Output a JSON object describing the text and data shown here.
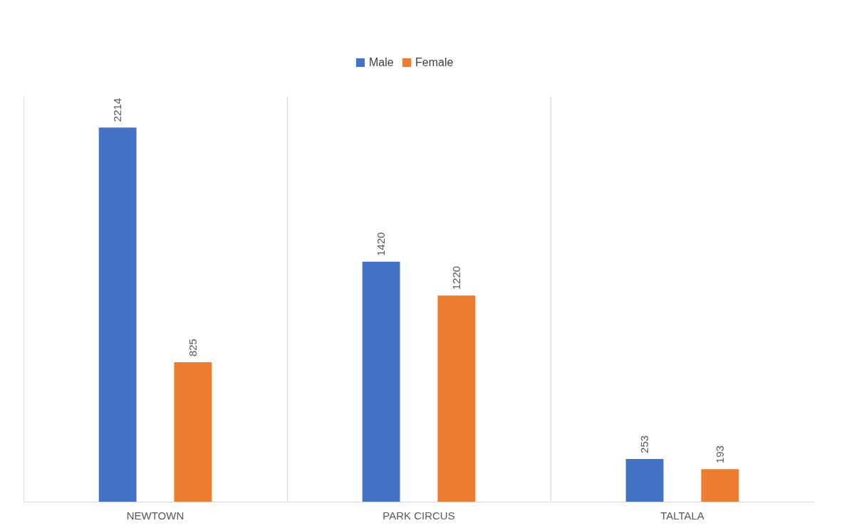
{
  "chart_data": {
    "type": "bar",
    "categories": [
      "NEWTOWN",
      "PARK CIRCUS",
      "TALTALA"
    ],
    "series": [
      {
        "name": "Male",
        "color": "#4472c4",
        "values": [
          2214,
          1420,
          253
        ]
      },
      {
        "name": "Female",
        "color": "#ed7d31",
        "values": [
          825,
          1220,
          193
        ]
      }
    ],
    "data_labels": true,
    "legend": "top",
    "grid": "x"
  }
}
